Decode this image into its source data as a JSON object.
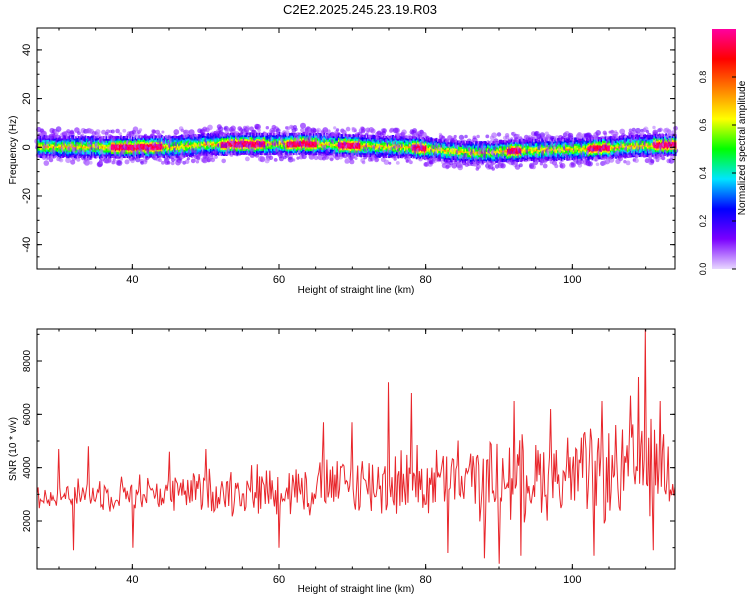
{
  "title": "C2E2.2025.245.23.19.R03",
  "chart_data": [
    {
      "type": "heatmap",
      "xlabel": "Height of straight line (km)",
      "ylabel": "Frequency (Hz)",
      "xlim": [
        27,
        114
      ],
      "ylim": [
        -50,
        49
      ],
      "xticks": [
        40,
        60,
        80,
        100
      ],
      "yticks": [
        40,
        20,
        0,
        -20,
        -40
      ],
      "colorbar": {
        "label": "Normalized spectral amplitude",
        "range": [
          0,
          1
        ],
        "ticks": [
          "0.0",
          "0.2",
          "0.4",
          "0.6",
          "0.8"
        ],
        "tick_values": [
          0.0,
          0.2,
          0.4,
          0.6,
          0.8
        ],
        "colors": [
          "#e8d8ff",
          "#7a00ff",
          "#0000ff",
          "#00e5ff",
          "#00ff00",
          "#ffff00",
          "#ff7f00",
          "#ff0000",
          "#ff00a0"
        ]
      },
      "band": {
        "center_hz": [
          [
            27,
            0.5
          ],
          [
            35,
            0.2
          ],
          [
            45,
            0.3
          ],
          [
            50,
            1.3
          ],
          [
            57,
            1.5
          ],
          [
            64,
            1.7
          ],
          [
            70,
            0.8
          ],
          [
            78,
            0.2
          ],
          [
            86,
            -2.0
          ],
          [
            95,
            -1.0
          ],
          [
            102,
            -0.5
          ],
          [
            108,
            0.6
          ],
          [
            114,
            1.2
          ]
        ],
        "half_width_hz": 4
      },
      "strong_segments_km": [
        [
          37,
          44
        ],
        [
          52,
          58
        ],
        [
          61,
          65
        ],
        [
          68,
          71
        ],
        [
          78,
          80
        ],
        [
          91,
          93
        ],
        [
          102,
          105
        ],
        [
          111,
          114
        ]
      ]
    },
    {
      "type": "line",
      "xlabel": "Height of straight line (km)",
      "ylabel": "SNR (10 * v/v)",
      "xlim": [
        27,
        114
      ],
      "ylim": [
        200,
        9200
      ],
      "xticks": [
        40,
        60,
        80,
        100
      ],
      "yticks": [
        8000,
        6000,
        4000,
        2000
      ],
      "color": "#e8262b",
      "series_summary": {
        "x_start": 27,
        "x_end": 114,
        "n_points": 560,
        "baseline_km": [
          27,
          50,
          75,
          90,
          114
        ],
        "baseline_snr": [
          3000,
          3100,
          3400,
          3600,
          3900
        ],
        "notable_peaks": [
          [
            30,
            4700
          ],
          [
            34,
            4800
          ],
          [
            45,
            4600
          ],
          [
            50,
            4700
          ],
          [
            60,
            5500
          ],
          [
            66,
            5700
          ],
          [
            70,
            5700
          ],
          [
            75,
            7200
          ],
          [
            78,
            6800
          ],
          [
            88,
            6300
          ],
          [
            92,
            6500
          ],
          [
            97,
            6200
          ],
          [
            104,
            6500
          ],
          [
            108,
            6700
          ],
          [
            109,
            7400
          ],
          [
            110,
            9200
          ],
          [
            112,
            6500
          ]
        ],
        "notable_troughs": [
          [
            32,
            900
          ],
          [
            40,
            1000
          ],
          [
            60,
            1000
          ],
          [
            83,
            800
          ],
          [
            88,
            600
          ],
          [
            90,
            400
          ],
          [
            93,
            700
          ],
          [
            103,
            700
          ],
          [
            111,
            900
          ]
        ]
      }
    }
  ]
}
